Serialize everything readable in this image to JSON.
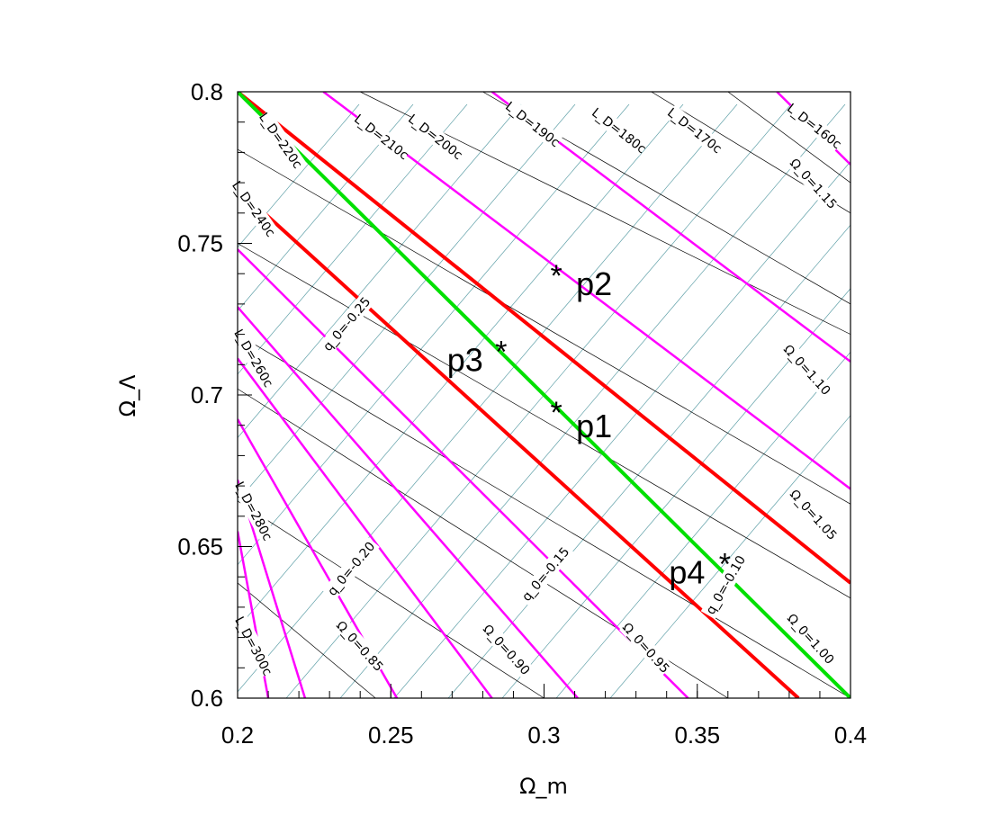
{
  "chart_data": {
    "type": "line",
    "xlabel": "Ω_m",
    "ylabel": "Ω_Λ",
    "xlim": [
      0.2,
      0.4
    ],
    "ylim": [
      0.6,
      0.8
    ],
    "x_ticks": [
      "0.2",
      "0.25",
      "0.3",
      "0.35",
      "0.4"
    ],
    "y_ticks": [
      "0.6",
      "0.65",
      "0.7",
      "0.75",
      "0.8"
    ],
    "grid": false,
    "colors": {
      "LD": "#ff00ff",
      "LD_highlight": "#ff0000",
      "q0": "#000000",
      "omega0": "#5fa0a8",
      "fit": "#00e000"
    },
    "ld_contours": [
      {
        "label": "L_D=160c",
        "color": "#ff00ff",
        "points": [
          [
            0.376,
            0.8
          ],
          [
            0.4,
            0.776
          ]
        ]
      },
      {
        "label": "L_D=170c",
        "color": "#ff00ff",
        "points": [
          [
            0.283,
            0.8
          ],
          [
            0.4,
            0.711
          ]
        ]
      },
      {
        "label": "L_D=180c",
        "color": "#ff00ff",
        "points": [
          [
            0.228,
            0.8
          ],
          [
            0.4,
            0.669
          ]
        ]
      },
      {
        "label": "L_D=190c",
        "color": "#ff0000",
        "points": [
          [
            0.2,
            0.8
          ],
          [
            0.4,
            0.638
          ]
        ]
      },
      {
        "label": "L_D=200c",
        "color": "#ff0000",
        "points": [
          [
            0.2,
            0.768
          ],
          [
            0.383,
            0.6
          ]
        ]
      },
      {
        "label": "L_D=210c",
        "color": "#ff00ff",
        "points": [
          [
            0.2,
            0.748
          ],
          [
            0.347,
            0.6
          ]
        ]
      },
      {
        "label": "L_D=220c",
        "color": "#ff00ff",
        "points": [
          [
            0.2,
            0.729
          ],
          [
            0.311,
            0.6
          ]
        ]
      },
      {
        "label": "L_D=240c",
        "color": "#ff00ff",
        "points": [
          [
            0.2,
            0.712
          ],
          [
            0.283,
            0.6
          ]
        ]
      },
      {
        "label": "L_D=260c",
        "color": "#ff00ff",
        "points": [
          [
            0.2,
            0.692
          ],
          [
            0.252,
            0.6
          ]
        ]
      },
      {
        "label": "L_D=280c",
        "color": "#ff00ff",
        "points": [
          [
            0.2,
            0.672
          ],
          [
            0.222,
            0.6
          ]
        ]
      },
      {
        "label": "L_D=300c",
        "color": "#ff00ff",
        "points": [
          [
            0.2,
            0.655
          ],
          [
            0.21,
            0.6
          ]
        ]
      }
    ],
    "fit_line": {
      "color": "#00e000",
      "points": [
        [
          0.2,
          0.8
        ],
        [
          0.4,
          0.6
        ]
      ]
    },
    "q0_contours": [
      {
        "label": "q_0=-0.25",
        "points": [
          [
            0.2,
            0.667
          ],
          [
            0.236,
            0.6
          ]
        ]
      },
      {
        "label": "q_0=-0.20",
        "points": [
          [
            0.2,
            0.68
          ],
          [
            0.265,
            0.6
          ]
        ]
      },
      {
        "label": "q_0=-0.15",
        "points": [
          [
            0.2,
            0.699
          ],
          [
            0.305,
            0.6
          ]
        ]
      },
      {
        "label": "q_0=-0.10",
        "points": [
          [
            0.2,
            0.746
          ],
          [
            0.37,
            0.6
          ]
        ]
      }
    ],
    "omega0_contours": [
      {
        "label": "Ω_0=0.85",
        "points": [
          [
            0.4,
            0.8
          ]
        ]
      },
      {
        "label": "Ω_0=0.90",
        "points": [
          [
            0.4,
            0.8
          ]
        ]
      },
      {
        "label": "Ω_0=0.95",
        "points": [
          [
            0.4,
            0.8
          ]
        ]
      },
      {
        "label": "Ω_0=1.00",
        "points": [
          [
            0.4,
            0.8
          ]
        ]
      },
      {
        "label": "Ω_0=1.05",
        "points": [
          [
            0.4,
            0.8
          ]
        ]
      },
      {
        "label": "Ω_0=1.10",
        "points": [
          [
            0.4,
            0.8
          ]
        ]
      },
      {
        "label": "Ω_0=1.15",
        "points": [
          [
            0.4,
            0.8
          ]
        ]
      }
    ],
    "points": [
      {
        "name": "p1",
        "x": 0.304,
        "y": 0.695
      },
      {
        "name": "p2",
        "x": 0.304,
        "y": 0.74
      },
      {
        "name": "p3",
        "x": 0.286,
        "y": 0.715
      },
      {
        "name": "p4",
        "x": 0.359,
        "y": 0.645
      }
    ]
  }
}
